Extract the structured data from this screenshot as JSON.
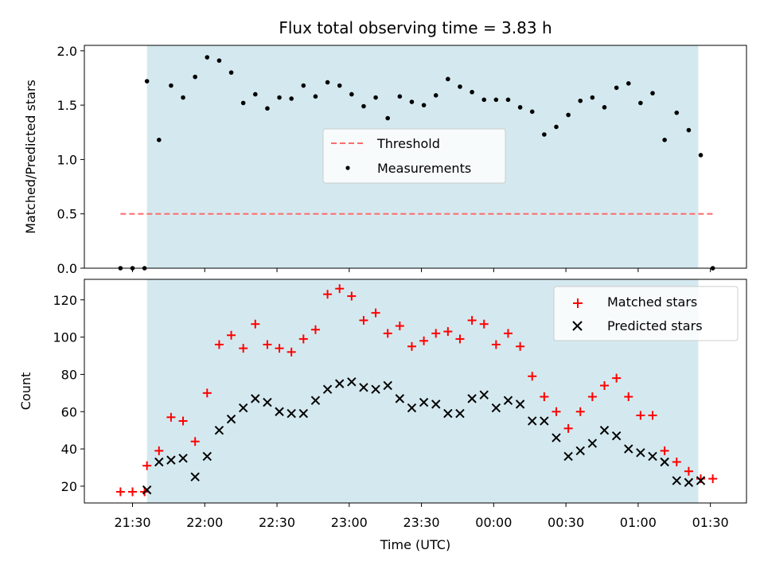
{
  "chart_data": [
    {
      "type": "scatter",
      "title": "Flux total observing time = 3.83 h",
      "xlabel": "",
      "ylabel": "Matched/Predicted stars",
      "ylim": [
        0,
        2.05
      ],
      "yticks": [
        "0.0",
        "0.5",
        "1.0",
        "1.5",
        "2.0"
      ],
      "ytick_values": [
        0,
        0.5,
        1.0,
        1.5,
        2.0
      ],
      "shaded_region": {
        "start": "21:36",
        "end": "01:25",
        "color": "#d4e9ef"
      },
      "legend_placement": "center",
      "colors": {
        "threshold": "#ff6b6b",
        "measurements": "#000000",
        "shade": "#d4e9ef"
      },
      "series": [
        {
          "name": "Threshold",
          "style": "dashed-line",
          "x": [
            "21:25",
            "01:32"
          ],
          "y": [
            0.5,
            0.5
          ]
        },
        {
          "name": "Measurements",
          "style": "dot",
          "x": [
            "21:25",
            "21:30",
            "21:35",
            "21:36",
            "21:41",
            "21:46",
            "21:51",
            "21:56",
            "22:01",
            "22:06",
            "22:11",
            "22:16",
            "22:21",
            "22:26",
            "22:31",
            "22:36",
            "22:41",
            "22:46",
            "22:51",
            "22:56",
            "23:01",
            "23:06",
            "23:11",
            "23:16",
            "23:21",
            "23:26",
            "23:31",
            "23:36",
            "23:41",
            "23:46",
            "23:51",
            "23:56",
            "00:01",
            "00:06",
            "00:11",
            "00:16",
            "00:21",
            "00:26",
            "00:31",
            "00:36",
            "00:41",
            "00:46",
            "00:51",
            "00:56",
            "01:01",
            "01:06",
            "01:11",
            "01:16",
            "01:21",
            "01:26",
            "01:31"
          ],
          "y": [
            0.0,
            0.0,
            0.0,
            1.72,
            1.18,
            1.68,
            1.57,
            1.76,
            1.94,
            1.91,
            1.8,
            1.52,
            1.6,
            1.47,
            1.57,
            1.56,
            1.68,
            1.58,
            1.71,
            1.68,
            1.6,
            1.49,
            1.57,
            1.38,
            1.58,
            1.53,
            1.5,
            1.59,
            1.74,
            1.67,
            1.62,
            1.55,
            1.55,
            1.55,
            1.48,
            1.44,
            1.23,
            1.3,
            1.41,
            1.54,
            1.57,
            1.48,
            1.66,
            1.7,
            1.52,
            1.61,
            1.18,
            1.43,
            1.27,
            1.04,
            0.0
          ]
        }
      ]
    },
    {
      "type": "scatter",
      "title": "",
      "xlabel": "Time (UTC)",
      "ylabel": "Count",
      "ylim": [
        11,
        131
      ],
      "yticks": [
        "20",
        "40",
        "60",
        "80",
        "100",
        "120"
      ],
      "ytick_values": [
        20,
        40,
        60,
        80,
        100,
        120
      ],
      "xlim": [
        "21:10",
        "01:45"
      ],
      "xticks": [
        "21:30",
        "22:00",
        "22:30",
        "23:00",
        "23:30",
        "00:00",
        "00:30",
        "01:00",
        "01:30"
      ],
      "shaded_region": {
        "start": "21:36",
        "end": "01:25",
        "color": "#d4e9ef"
      },
      "legend_placement": "upper right",
      "colors": {
        "matched": "#ff0000",
        "predicted": "#000000"
      },
      "series": [
        {
          "name": "Matched stars",
          "marker": "plus",
          "x": [
            "21:25",
            "21:30",
            "21:35",
            "21:36",
            "21:41",
            "21:46",
            "21:51",
            "21:56",
            "22:01",
            "22:06",
            "22:11",
            "22:16",
            "22:21",
            "22:26",
            "22:31",
            "22:36",
            "22:41",
            "22:46",
            "22:51",
            "22:56",
            "23:01",
            "23:06",
            "23:11",
            "23:16",
            "23:21",
            "23:26",
            "23:31",
            "23:36",
            "23:41",
            "23:46",
            "23:51",
            "23:56",
            "00:01",
            "00:06",
            "00:11",
            "00:16",
            "00:21",
            "00:26",
            "00:31",
            "00:36",
            "00:41",
            "00:46",
            "00:51",
            "00:56",
            "01:01",
            "01:06",
            "01:11",
            "01:16",
            "01:21",
            "01:26",
            "01:31"
          ],
          "y": [
            17,
            17,
            17,
            31,
            39,
            57,
            55,
            44,
            70,
            96,
            101,
            94,
            107,
            96,
            94,
            92,
            99,
            104,
            123,
            126,
            122,
            109,
            113,
            102,
            106,
            95,
            98,
            102,
            103,
            99,
            109,
            107,
            96,
            102,
            95,
            79,
            68,
            60,
            51,
            60,
            68,
            74,
            78,
            68,
            58,
            58,
            39,
            33,
            28,
            24,
            24
          ]
        },
        {
          "name": "Predicted stars",
          "marker": "x",
          "x": [
            "21:36",
            "21:41",
            "21:46",
            "21:51",
            "21:56",
            "22:01",
            "22:06",
            "22:11",
            "22:16",
            "22:21",
            "22:26",
            "22:31",
            "22:36",
            "22:41",
            "22:46",
            "22:51",
            "22:56",
            "23:01",
            "23:06",
            "23:11",
            "23:16",
            "23:21",
            "23:26",
            "23:31",
            "23:36",
            "23:41",
            "23:46",
            "23:51",
            "23:56",
            "00:01",
            "00:06",
            "00:11",
            "00:16",
            "00:21",
            "00:26",
            "00:31",
            "00:36",
            "00:41",
            "00:46",
            "00:51",
            "00:56",
            "01:01",
            "01:06",
            "01:11",
            "01:16",
            "01:21",
            "01:26"
          ],
          "y": [
            18,
            33,
            34,
            35,
            25,
            36,
            50,
            56,
            62,
            67,
            65,
            60,
            59,
            59,
            66,
            72,
            75,
            76,
            73,
            72,
            74,
            67,
            62,
            65,
            64,
            59,
            59,
            67,
            69,
            62,
            66,
            64,
            55,
            55,
            46,
            36,
            39,
            43,
            50,
            47,
            40,
            38,
            36,
            33,
            23,
            22,
            23
          ]
        }
      ]
    }
  ]
}
